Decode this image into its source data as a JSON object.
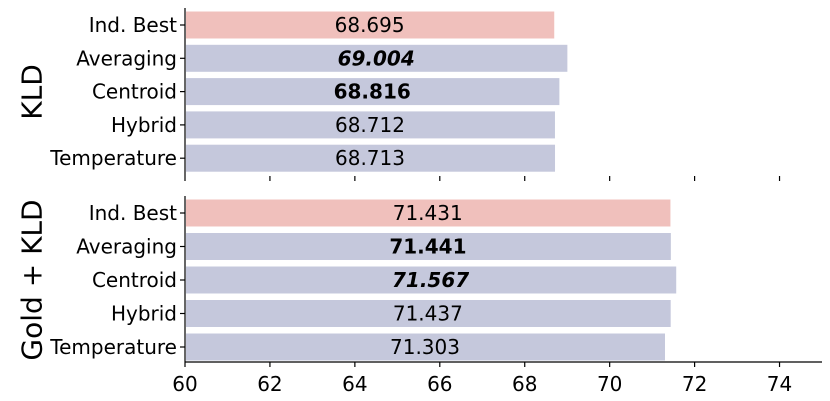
{
  "chart_data": [
    {
      "type": "bar",
      "orientation": "horizontal",
      "title": "KLD",
      "categories": [
        "Ind. Best",
        "Averaging",
        "Centroid",
        "Hybrid",
        "Temperature"
      ],
      "values": [
        68.695,
        69.004,
        68.816,
        68.712,
        68.713
      ],
      "value_labels": [
        "68.695",
        "69.004",
        "68.816",
        "68.712",
        "68.713"
      ],
      "label_styles": [
        "normal",
        "bold-italic",
        "bold",
        "normal",
        "normal"
      ],
      "bar_colors": [
        "#f0c0bc",
        "#c5c8dc",
        "#c5c8dc",
        "#c5c8dc",
        "#c5c8dc"
      ],
      "xlim": [
        60,
        75
      ]
    },
    {
      "type": "bar",
      "orientation": "horizontal",
      "title": "Gold + KLD",
      "categories": [
        "Ind. Best",
        "Averaging",
        "Centroid",
        "Hybrid",
        "Temperature"
      ],
      "values": [
        71.431,
        71.441,
        71.567,
        71.437,
        71.303
      ],
      "value_labels": [
        "71.431",
        "71.441",
        "71.567",
        "71.437",
        "71.303"
      ],
      "label_styles": [
        "normal",
        "bold",
        "bold-italic",
        "normal",
        "normal"
      ],
      "bar_colors": [
        "#f0c0bc",
        "#c5c8dc",
        "#c5c8dc",
        "#c5c8dc",
        "#c5c8dc"
      ],
      "xlim": [
        60,
        75
      ]
    }
  ],
  "x_axis": {
    "ticks": [
      60,
      62,
      64,
      66,
      68,
      70,
      72,
      74
    ],
    "tick_labels": [
      "60",
      "62",
      "64",
      "66",
      "68",
      "70",
      "72",
      "74"
    ]
  }
}
